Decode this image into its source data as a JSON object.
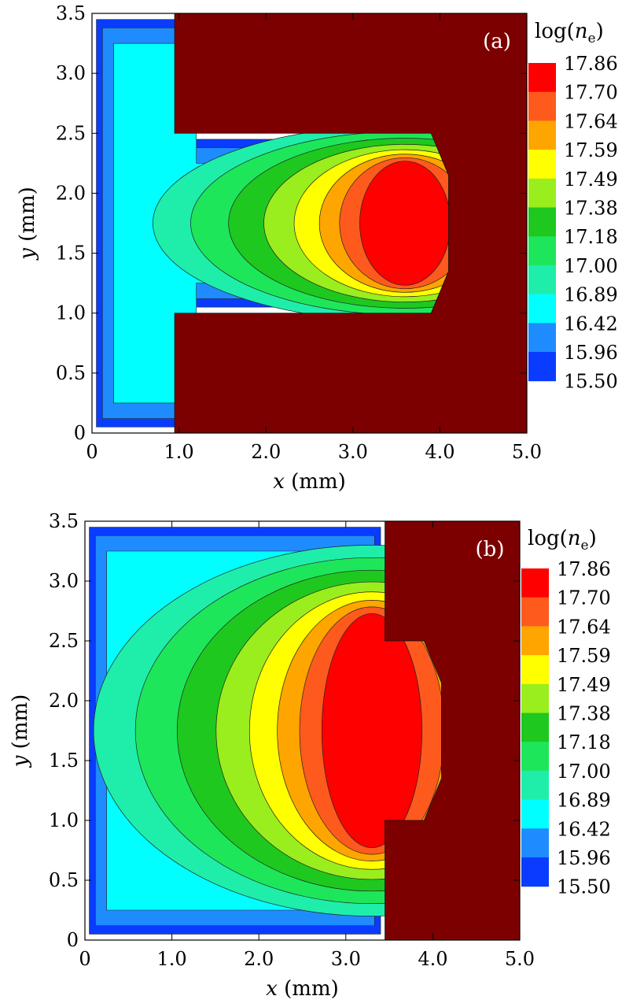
{
  "chart_data": [
    {
      "type": "heatmap",
      "panel_label": "(a)",
      "xlabel_var": "x",
      "xlabel_unit": "(mm)",
      "ylabel_var": "y",
      "ylabel_unit": "(mm)",
      "xlim": [
        0,
        5.0
      ],
      "ylim": [
        0,
        3.5
      ],
      "x_ticks": [
        0,
        1.0,
        2.0,
        3.0,
        4.0,
        5.0
      ],
      "x_tick_labels": [
        "0",
        "1.0",
        "2.0",
        "3.0",
        "4.0",
        "5.0"
      ],
      "y_ticks": [
        0,
        0.5,
        1.0,
        1.5,
        2.0,
        2.5,
        3.0,
        3.5
      ],
      "y_tick_labels": [
        "0",
        "0.5",
        "1.0",
        "1.5",
        "2.0",
        "2.5",
        "3.0",
        "3.5"
      ],
      "colorbar_title": "log(n_e)",
      "colorbar_levels": [
        "17.86",
        "17.70",
        "17.64",
        "17.59",
        "17.49",
        "17.38",
        "17.18",
        "17.00",
        "16.89",
        "16.42",
        "15.96",
        "15.50"
      ],
      "colorbar_colors": [
        "#ff0000",
        "#ff5a1e",
        "#ffa500",
        "#ffff00",
        "#9aee1e",
        "#1ec81e",
        "#1ee65a",
        "#1eeeaa",
        "#00ffff",
        "#1e8cff",
        "#0a3cff"
      ],
      "background_color": "#7d0000",
      "domain_outline": [
        [
          0,
          0
        ],
        [
          0.95,
          0
        ],
        [
          0.95,
          1.0
        ],
        [
          3.9,
          1.0
        ],
        [
          4.1,
          1.35
        ],
        [
          4.1,
          2.15
        ],
        [
          3.9,
          2.5
        ],
        [
          0.95,
          2.5
        ],
        [
          0.95,
          3.5
        ],
        [
          0,
          3.5
        ]
      ],
      "density_peak": {
        "x": 3.6,
        "y": 1.75
      }
    },
    {
      "type": "heatmap",
      "panel_label": "(b)",
      "xlabel_var": "x",
      "xlabel_unit": "(mm)",
      "ylabel_var": "y",
      "ylabel_unit": "(mm)",
      "xlim": [
        0,
        5.0
      ],
      "ylim": [
        0,
        3.5
      ],
      "x_ticks": [
        0,
        1.0,
        2.0,
        3.0,
        4.0,
        5.0
      ],
      "x_tick_labels": [
        "0",
        "1.0",
        "2.0",
        "3.0",
        "4.0",
        "5.0"
      ],
      "y_ticks": [
        0,
        0.5,
        1.0,
        1.5,
        2.0,
        2.5,
        3.0,
        3.5
      ],
      "y_tick_labels": [
        "0",
        "0.5",
        "1.0",
        "1.5",
        "2.0",
        "2.5",
        "3.0",
        "3.5"
      ],
      "colorbar_title": "log(n_e)",
      "colorbar_levels": [
        "17.86",
        "17.70",
        "17.64",
        "17.59",
        "17.49",
        "17.38",
        "17.18",
        "17.00",
        "16.89",
        "16.42",
        "15.96",
        "15.50"
      ],
      "colorbar_colors": [
        "#ff0000",
        "#ff5a1e",
        "#ffa500",
        "#ffff00",
        "#9aee1e",
        "#1ec81e",
        "#1ee65a",
        "#1eeeaa",
        "#00ffff",
        "#1e8cff",
        "#0a3cff"
      ],
      "background_color": "#7d0000",
      "domain_outline": [
        [
          0,
          0
        ],
        [
          3.45,
          0
        ],
        [
          3.45,
          1.0
        ],
        [
          3.9,
          1.0
        ],
        [
          4.1,
          1.35
        ],
        [
          4.1,
          2.15
        ],
        [
          3.9,
          2.5
        ],
        [
          3.45,
          2.5
        ],
        [
          3.45,
          3.5
        ],
        [
          0,
          3.5
        ]
      ],
      "density_peak": {
        "x": 3.3,
        "y": 1.75
      }
    }
  ]
}
